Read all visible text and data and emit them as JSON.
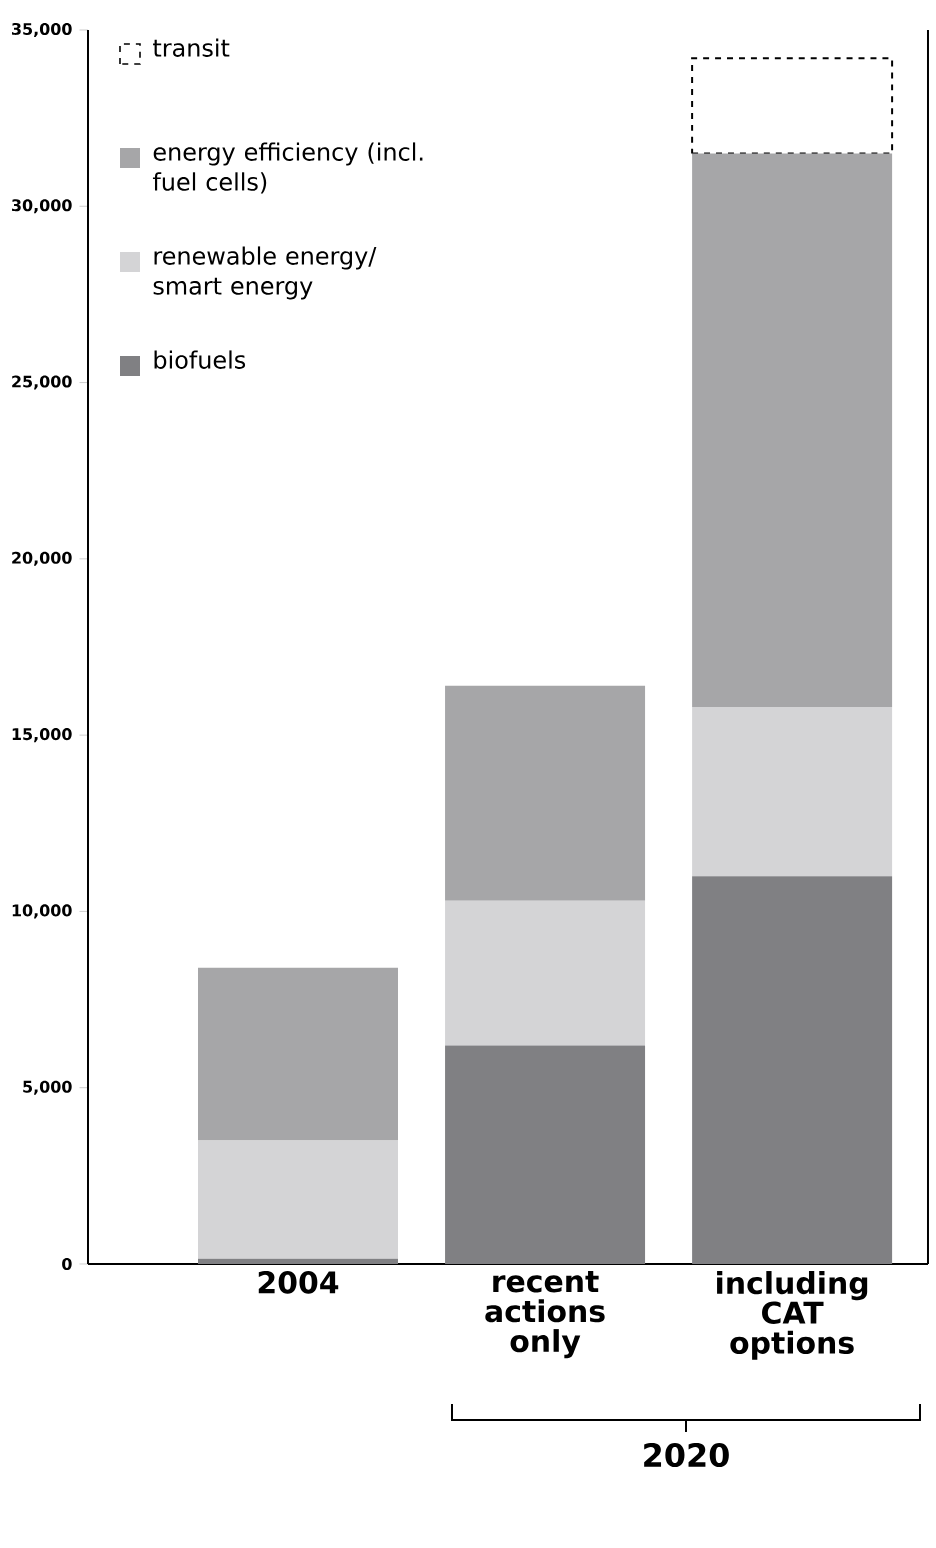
{
  "chart_data": {
    "type": "bar",
    "stacked": true,
    "categories": [
      "2004",
      "recent actions only",
      "including CAT options"
    ],
    "series": [
      {
        "name": "biofuels",
        "color": "#808083",
        "values": [
          150,
          6200,
          11000
        ]
      },
      {
        "name": "renewable energy/ smart energy",
        "color": "#d4d4d6",
        "values": [
          3350,
          4100,
          4800
        ]
      },
      {
        "name": "energy efficiency (incl. fuel cells)",
        "color": "#a6a6a8",
        "values": [
          4900,
          6100,
          15700
        ]
      },
      {
        "name": "transit",
        "color": "#ffffff",
        "line_style": "dashed",
        "values": [
          null,
          null,
          2700
        ]
      }
    ],
    "ylim": [
      0,
      35000
    ],
    "yticks": [
      {
        "value": 0,
        "label": "0"
      },
      {
        "value": 5000,
        "label": "5,000"
      },
      {
        "value": 10000,
        "label": "10,000"
      },
      {
        "value": 15000,
        "label": "15,000"
      },
      {
        "value": 20000,
        "label": "20,000"
      },
      {
        "value": 25000,
        "label": "25,000"
      },
      {
        "value": 30000,
        "label": "30,000"
      },
      {
        "value": 35000,
        "label": "35,000"
      }
    ],
    "legend": "top left",
    "grid": false,
    "annotations": [
      "2020"
    ]
  }
}
